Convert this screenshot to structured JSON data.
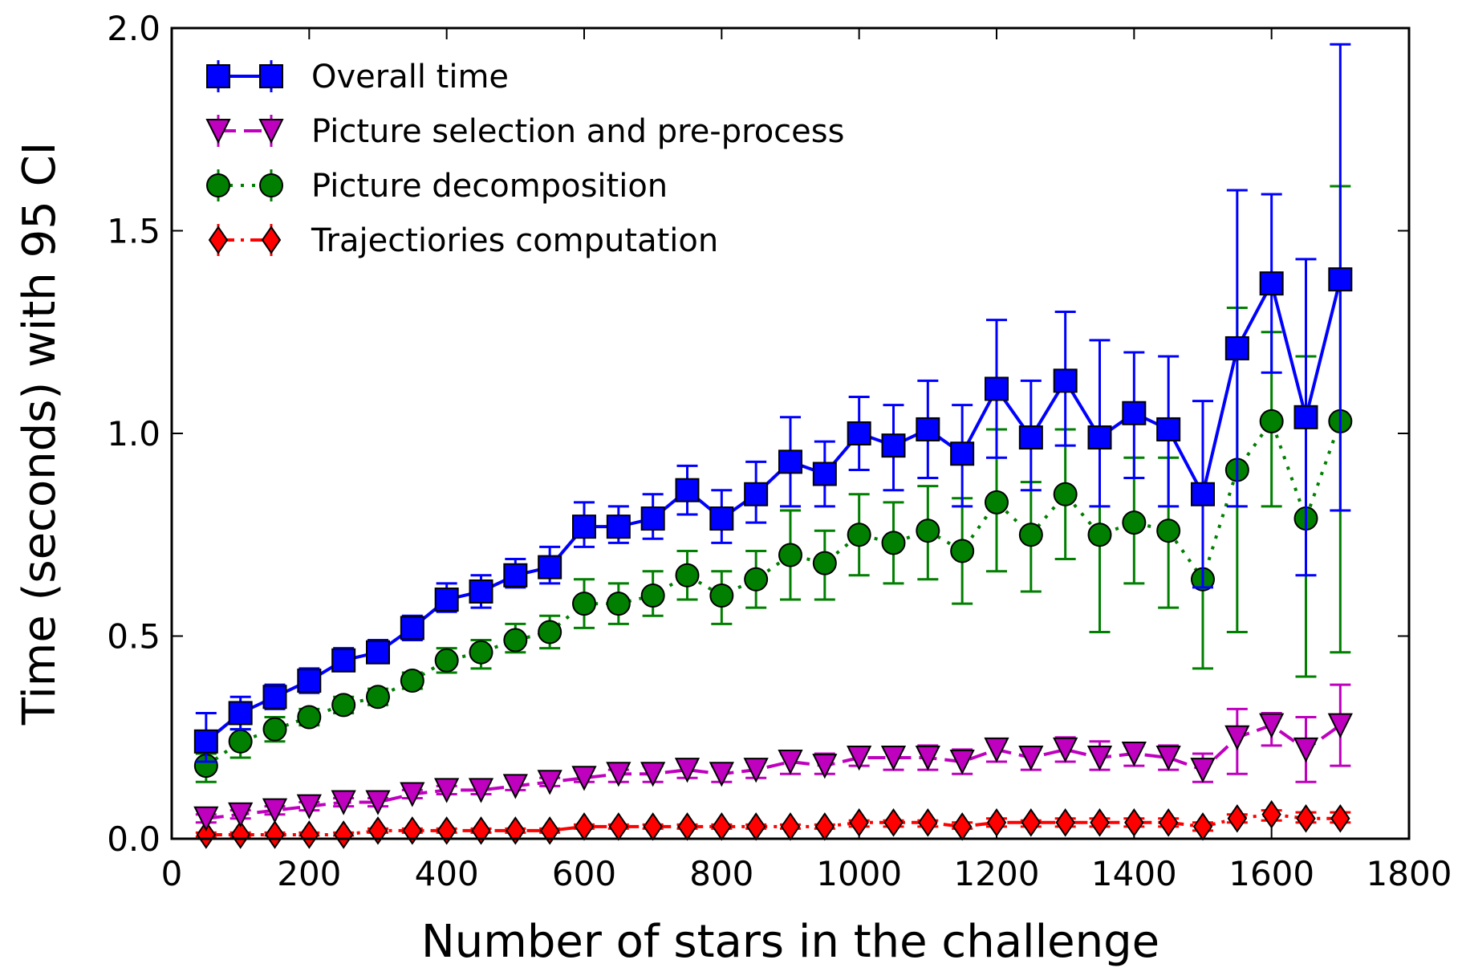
{
  "chart_data": {
    "type": "line",
    "title": "",
    "xlabel": "Number of stars in the challenge",
    "ylabel": "Time (seconds) with 95 CI",
    "xlim": [
      0,
      1800
    ],
    "ylim": [
      0.0,
      2.0
    ],
    "xticks": [
      0,
      200,
      400,
      600,
      800,
      1000,
      1200,
      1400,
      1600,
      1800
    ],
    "xtick_labels": [
      "0",
      "200",
      "400",
      "600",
      "800",
      "1000",
      "1200",
      "1400",
      "1600",
      "1800"
    ],
    "yticks": [
      0.0,
      0.5,
      1.0,
      1.5,
      2.0
    ],
    "ytick_labels": [
      "0.0",
      "0.5",
      "1.0",
      "1.5",
      "2.0"
    ],
    "grid": false,
    "legend_position": "top-left",
    "x": [
      50,
      100,
      150,
      200,
      250,
      300,
      350,
      400,
      450,
      500,
      550,
      600,
      650,
      700,
      750,
      800,
      850,
      900,
      950,
      1000,
      1050,
      1100,
      1150,
      1200,
      1250,
      1300,
      1350,
      1400,
      1450,
      1500,
      1550,
      1600,
      1650,
      1700
    ],
    "series": [
      {
        "name": "Overall time",
        "color": "#0000ff",
        "marker": "square",
        "linestyle": "solid",
        "values": [
          0.24,
          0.31,
          0.35,
          0.39,
          0.44,
          0.46,
          0.52,
          0.59,
          0.61,
          0.65,
          0.67,
          0.77,
          0.77,
          0.79,
          0.86,
          0.79,
          0.85,
          0.93,
          0.9,
          1.0,
          0.97,
          1.01,
          0.95,
          1.11,
          0.99,
          1.13,
          0.99,
          1.05,
          1.01,
          0.85,
          1.21,
          1.37,
          1.04,
          1.38
        ],
        "ci_low": [
          0.19,
          0.27,
          0.32,
          0.36,
          0.42,
          0.44,
          0.49,
          0.56,
          0.57,
          0.62,
          0.63,
          0.72,
          0.73,
          0.74,
          0.8,
          0.73,
          0.78,
          0.82,
          0.82,
          0.91,
          0.86,
          0.89,
          0.82,
          0.94,
          0.86,
          0.97,
          0.82,
          0.89,
          0.82,
          0.62,
          0.82,
          1.15,
          0.65,
          0.81
        ],
        "ci_high": [
          0.31,
          0.35,
          0.38,
          0.42,
          0.47,
          0.49,
          0.55,
          0.63,
          0.65,
          0.69,
          0.72,
          0.83,
          0.82,
          0.85,
          0.92,
          0.86,
          0.93,
          1.04,
          0.98,
          1.09,
          1.07,
          1.13,
          1.07,
          1.28,
          1.13,
          1.3,
          1.23,
          1.2,
          1.19,
          1.08,
          1.6,
          1.59,
          1.43,
          1.96
        ]
      },
      {
        "name": "Picture selection and pre-process",
        "color": "#bf00bf",
        "marker": "triangle-down",
        "linestyle": "dashed",
        "values": [
          0.05,
          0.06,
          0.07,
          0.08,
          0.09,
          0.09,
          0.11,
          0.12,
          0.12,
          0.13,
          0.14,
          0.15,
          0.16,
          0.16,
          0.17,
          0.16,
          0.17,
          0.19,
          0.18,
          0.2,
          0.2,
          0.2,
          0.19,
          0.22,
          0.2,
          0.22,
          0.2,
          0.21,
          0.2,
          0.17,
          0.25,
          0.28,
          0.22,
          0.28
        ],
        "ci_low": [
          0.04,
          0.05,
          0.06,
          0.07,
          0.08,
          0.08,
          0.1,
          0.11,
          0.11,
          0.12,
          0.13,
          0.14,
          0.14,
          0.14,
          0.15,
          0.14,
          0.15,
          0.16,
          0.16,
          0.18,
          0.17,
          0.17,
          0.16,
          0.19,
          0.17,
          0.19,
          0.17,
          0.18,
          0.17,
          0.14,
          0.16,
          0.23,
          0.14,
          0.18
        ],
        "ci_high": [
          0.06,
          0.07,
          0.08,
          0.09,
          0.1,
          0.1,
          0.12,
          0.13,
          0.14,
          0.15,
          0.15,
          0.17,
          0.17,
          0.18,
          0.19,
          0.18,
          0.19,
          0.21,
          0.21,
          0.22,
          0.22,
          0.23,
          0.22,
          0.24,
          0.22,
          0.25,
          0.24,
          0.23,
          0.23,
          0.21,
          0.32,
          0.31,
          0.3,
          0.38
        ]
      },
      {
        "name": "Picture decomposition",
        "color": "#007f00",
        "marker": "circle",
        "linestyle": "dotted",
        "values": [
          0.18,
          0.24,
          0.27,
          0.3,
          0.33,
          0.35,
          0.39,
          0.44,
          0.46,
          0.49,
          0.51,
          0.58,
          0.58,
          0.6,
          0.65,
          0.6,
          0.64,
          0.7,
          0.68,
          0.75,
          0.73,
          0.76,
          0.71,
          0.83,
          0.75,
          0.85,
          0.75,
          0.78,
          0.76,
          0.64,
          0.91,
          1.03,
          0.79,
          1.03
        ],
        "ci_low": [
          0.14,
          0.2,
          0.24,
          0.28,
          0.31,
          0.33,
          0.37,
          0.41,
          0.42,
          0.46,
          0.47,
          0.52,
          0.53,
          0.55,
          0.59,
          0.53,
          0.57,
          0.59,
          0.59,
          0.65,
          0.63,
          0.64,
          0.58,
          0.66,
          0.61,
          0.69,
          0.51,
          0.63,
          0.57,
          0.42,
          0.51,
          0.82,
          0.4,
          0.46
        ],
        "ci_high": [
          0.21,
          0.27,
          0.3,
          0.32,
          0.35,
          0.37,
          0.41,
          0.47,
          0.49,
          0.53,
          0.55,
          0.64,
          0.63,
          0.66,
          0.71,
          0.66,
          0.71,
          0.81,
          0.76,
          0.85,
          0.83,
          0.87,
          0.84,
          1.01,
          0.88,
          1.01,
          1.0,
          0.94,
          0.94,
          0.87,
          1.31,
          1.25,
          1.19,
          1.61
        ]
      },
      {
        "name": "Trajectiories computation",
        "color": "#ff0000",
        "marker": "diamond",
        "linestyle": "dashdot",
        "values": [
          0.01,
          0.01,
          0.01,
          0.01,
          0.01,
          0.02,
          0.02,
          0.02,
          0.02,
          0.02,
          0.02,
          0.03,
          0.03,
          0.03,
          0.03,
          0.03,
          0.03,
          0.03,
          0.03,
          0.04,
          0.04,
          0.04,
          0.03,
          0.04,
          0.04,
          0.04,
          0.04,
          0.04,
          0.04,
          0.03,
          0.05,
          0.06,
          0.05,
          0.05
        ],
        "ci_low": [
          0.005,
          0.005,
          0.008,
          0.008,
          0.008,
          0.015,
          0.015,
          0.015,
          0.015,
          0.015,
          0.015,
          0.025,
          0.025,
          0.025,
          0.025,
          0.025,
          0.025,
          0.025,
          0.025,
          0.03,
          0.03,
          0.03,
          0.025,
          0.03,
          0.03,
          0.03,
          0.03,
          0.03,
          0.03,
          0.02,
          0.04,
          0.045,
          0.04,
          0.04
        ],
        "ci_high": [
          0.015,
          0.015,
          0.015,
          0.015,
          0.015,
          0.025,
          0.025,
          0.025,
          0.025,
          0.025,
          0.025,
          0.035,
          0.035,
          0.035,
          0.035,
          0.035,
          0.035,
          0.035,
          0.035,
          0.045,
          0.045,
          0.045,
          0.04,
          0.05,
          0.045,
          0.05,
          0.05,
          0.05,
          0.05,
          0.04,
          0.06,
          0.07,
          0.065,
          0.065
        ]
      }
    ]
  }
}
